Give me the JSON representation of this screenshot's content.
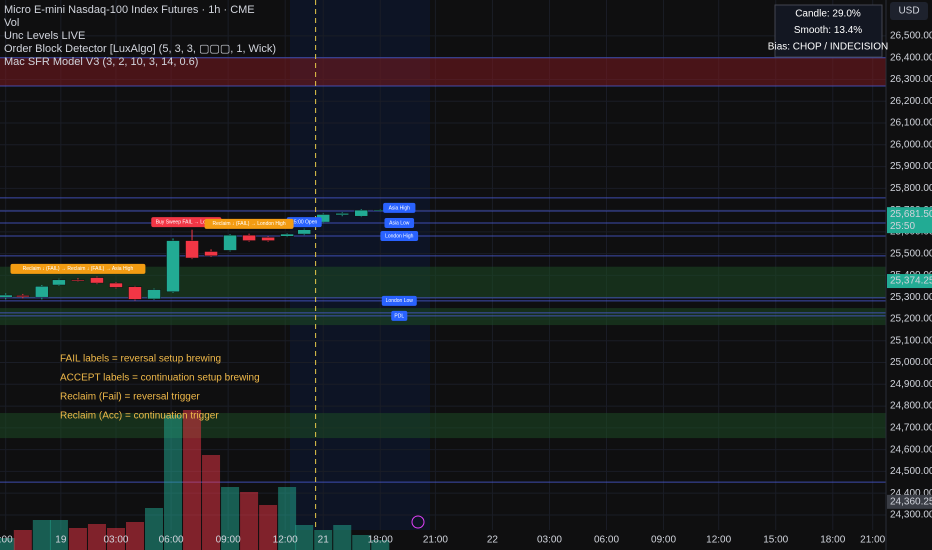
{
  "chart_data": {
    "type": "candlestick",
    "header": [
      "Micro E-mini Nasdaq-100 Index Futures · 1h · CME",
      "Vol",
      "Unc Levels LIVE",
      "Order Block Detector [LuxAlgo] (5, 3, 3, ▢▢▢, 1, Wick)",
      "Mac SFR Model V3 (3, 2, 10, 3, 14, 0.6)"
    ],
    "currency": "USD",
    "info_box": [
      "Candle: 29.0%",
      "Smooth: 13.4%",
      "Bias: CHOP / INDECISION"
    ],
    "notes": [
      "FAIL labels = reversal setup brewing",
      "ACCEPT labels = continuation setup brewing",
      "Reclaim (Fail) = reversal trigger",
      "Reclaim (Acc) = continuation trigger"
    ],
    "up_color": "#22ab94",
    "down_color": "#f23645",
    "level_color": "#4a5bd4",
    "ylim": [
      24139,
      26665
    ],
    "yticks": [
      {
        "value": 24300,
        "label": "24,300.00"
      },
      {
        "value": 24400,
        "label": "24,400.00"
      },
      {
        "value": 24500,
        "label": "24,500.00"
      },
      {
        "value": 24600,
        "label": "24,600.00"
      },
      {
        "value": 24700,
        "label": "24,700.00"
      },
      {
        "value": 24800,
        "label": "24,800.00"
      },
      {
        "value": 24900,
        "label": "24,900.00"
      },
      {
        "value": 25000,
        "label": "25,000.00"
      },
      {
        "value": 25100,
        "label": "25,100.00"
      },
      {
        "value": 25200,
        "label": "25,200.00"
      },
      {
        "value": 25300,
        "label": "25,300.00"
      },
      {
        "value": 25400,
        "label": "25,400.00"
      },
      {
        "value": 25500,
        "label": "25,500.00"
      },
      {
        "value": 25600,
        "label": "25,600.00"
      },
      {
        "value": 25700,
        "label": "25,700.00"
      },
      {
        "value": 25800,
        "label": "25,800.00"
      },
      {
        "value": 25900,
        "label": "25,900.00"
      },
      {
        "value": 26000,
        "label": "26,000.00"
      },
      {
        "value": 26100,
        "label": "26,100.00"
      },
      {
        "value": 26200,
        "label": "26,200.00"
      },
      {
        "value": 26300,
        "label": "26,300.00"
      },
      {
        "value": 26400,
        "label": "26,400.00"
      },
      {
        "value": 26500,
        "label": "26,500.00"
      }
    ],
    "xlim": [
      0,
      46.6
    ],
    "xticks": [
      {
        "value": 0.3,
        "label": ":00"
      },
      {
        "value": 3.2,
        "label": "19"
      },
      {
        "value": 6.1,
        "label": "03:00"
      },
      {
        "value": 9.0,
        "label": "06:00"
      },
      {
        "value": 12.0,
        "label": "09:00"
      },
      {
        "value": 15.0,
        "label": "12:00"
      },
      {
        "value": 17.0,
        "label": "21"
      },
      {
        "value": 20.0,
        "label": "18:00"
      },
      {
        "value": 22.9,
        "label": "21:00"
      },
      {
        "value": 25.9,
        "label": "22"
      },
      {
        "value": 28.9,
        "label": "03:00"
      },
      {
        "value": 31.9,
        "label": "06:00"
      },
      {
        "value": 34.9,
        "label": "09:00"
      },
      {
        "value": 37.8,
        "label": "12:00"
      },
      {
        "value": 40.8,
        "label": "15:00"
      },
      {
        "value": 43.8,
        "label": "18:00"
      },
      {
        "value": 45.9,
        "label": "21:00"
      }
    ],
    "session_line": 16.6,
    "x": [
      0.3,
      1.2,
      2.2,
      3.1,
      4.1,
      5.1,
      6.1,
      7.1,
      8.1,
      9.1,
      10.1,
      11.1,
      12.1,
      13.1,
      14.1,
      15.1,
      16.0,
      17.0,
      18.0,
      19.0,
      20.0
    ],
    "open": [
      25300,
      25308,
      25300,
      25356,
      25380,
      25390,
      25365,
      25348,
      25292,
      25325,
      25560,
      25510,
      25515,
      25585,
      25575,
      25580,
      25590,
      25645,
      25678,
      25672,
      25700
    ],
    "high": [
      25318,
      25315,
      25356,
      25385,
      25388,
      25395,
      25370,
      25352,
      25340,
      25570,
      25610,
      25520,
      25590,
      25592,
      25580,
      25594,
      25615,
      25685,
      25690,
      25705,
      25705
    ],
    "low": [
      25290,
      25295,
      25290,
      25352,
      25372,
      25360,
      25340,
      25285,
      25288,
      25320,
      25475,
      25485,
      25510,
      25555,
      25555,
      25576,
      25585,
      25640,
      25672,
      25668,
      25695
    ],
    "close": [
      25310,
      25302,
      25350,
      25380,
      25375,
      25365,
      25345,
      25290,
      25335,
      25560,
      25480,
      25490,
      25585,
      25560,
      25560,
      25590,
      25610,
      25680,
      25685,
      25700,
      25702
    ],
    "volume": [
      12,
      20,
      30,
      30,
      22,
      26,
      22,
      28,
      42,
      135,
      140,
      95,
      63,
      58,
      45,
      63,
      25,
      20,
      25,
      15,
      10
    ],
    "levels": [
      26400,
      26270,
      25756,
      25696,
      25641,
      25581,
      25490,
      25297,
      25283,
      25228,
      25214,
      24451
    ],
    "zones": [
      {
        "low": 26270,
        "high": 26399,
        "color": "#7a1a1f"
      },
      {
        "low": 25297,
        "high": 25440,
        "color": "#1d4a24"
      },
      {
        "low": 25172,
        "high": 25250,
        "color": "#1d4a24"
      },
      {
        "low": 24653,
        "high": 24768,
        "color": "#1d4a24"
      }
    ],
    "tags": [
      {
        "text": "Asia High",
        "price": 25710,
        "x": 21.0,
        "color": "#2962ff"
      },
      {
        "text": "Asia Low",
        "price": 25641,
        "x": 21.0,
        "color": "#2962ff"
      },
      {
        "text": "London High",
        "price": 25581,
        "x": 21.0,
        "color": "#2962ff"
      },
      {
        "text": "London Low",
        "price": 25283,
        "x": 21.0,
        "color": "#2962ff"
      },
      {
        "text": "PDL",
        "price": 25214,
        "x": 21.0,
        "color": "#2962ff"
      },
      {
        "text": "15:00 Open",
        "price": 25645,
        "x": 16.0,
        "color": "#2962ff"
      },
      {
        "text": "Reclaim ↓ (FAIL) → Reclaim ↓ (FAIL) → Asia High",
        "price": 25430,
        "x": 4.1,
        "color": "#f39c12"
      },
      {
        "text": "Buy Sweep FAIL → London",
        "price": 25645,
        "x": 9.8,
        "color": "#f23645"
      },
      {
        "text": "Reclaim ↓ (FAIL) → London High",
        "price": 25637,
        "x": 13.1,
        "color": "#f39c12"
      }
    ],
    "price_marks": [
      {
        "value": 25681.5,
        "label": "25,681.50",
        "color": "#22ab94"
      },
      {
        "value": 25374.25,
        "label": "25,374.25",
        "color": "#22ab94"
      },
      {
        "value": 24360.25,
        "label": "24,360.25",
        "color": "#3a3d45"
      }
    ],
    "countdown": "25:50"
  }
}
